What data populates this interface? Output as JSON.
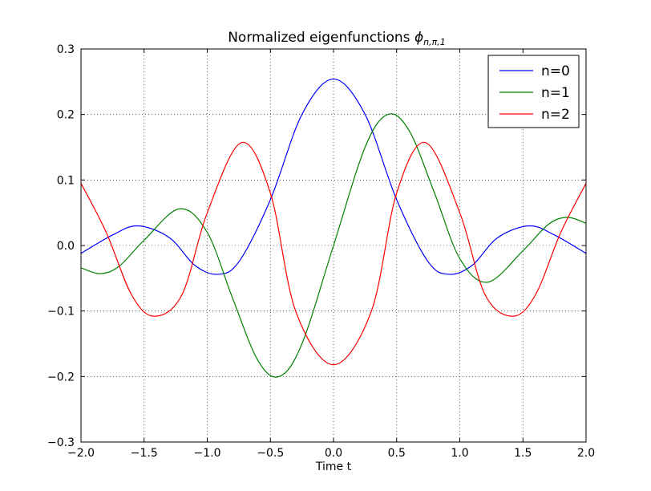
{
  "chart_data": {
    "type": "line",
    "title": "Normalized eigenfunctions",
    "title_math": "ϕ",
    "title_subscript": "n,π,1",
    "xlabel": "Time t",
    "ylabel": "",
    "xlim": [
      -2.0,
      2.0
    ],
    "ylim": [
      -0.3,
      0.3
    ],
    "grid": true,
    "legend_position": "top-right",
    "x_ticks": [
      -2.0,
      -1.5,
      -1.0,
      -0.5,
      0.0,
      0.5,
      1.0,
      1.5,
      2.0
    ],
    "x_tick_labels": [
      "−2.0",
      "−1.5",
      "−1.0",
      "−0.5",
      "0.0",
      "0.5",
      "1.0",
      "1.5",
      "2.0"
    ],
    "y_ticks": [
      -0.3,
      -0.2,
      -0.1,
      0.0,
      0.1,
      0.2,
      0.3
    ],
    "y_tick_labels": [
      "−0.3",
      "−0.2",
      "−0.1",
      "0.0",
      "0.1",
      "0.2",
      "0.3"
    ],
    "series": [
      {
        "name": "n=0",
        "color": "#0000ff",
        "x": [
          -2.0,
          -1.75,
          -1.55,
          -1.3,
          -1.1,
          -0.92,
          -0.75,
          -0.5,
          -0.25,
          0.0,
          0.25,
          0.5,
          0.75,
          0.92,
          1.1,
          1.3,
          1.55,
          1.75,
          2.0
        ],
        "y": [
          -0.012,
          0.016,
          0.03,
          0.012,
          -0.03,
          -0.044,
          -0.025,
          0.07,
          0.2,
          0.254,
          0.2,
          0.07,
          -0.025,
          -0.044,
          -0.03,
          0.012,
          0.03,
          0.016,
          -0.012
        ]
      },
      {
        "name": "n=1",
        "color": "#008000",
        "x": [
          -2.0,
          -1.85,
          -1.7,
          -1.5,
          -1.22,
          -1.0,
          -0.8,
          -0.6,
          -0.43,
          -0.25,
          0.0,
          0.25,
          0.43,
          0.6,
          0.8,
          1.0,
          1.22,
          1.5,
          1.7,
          1.85,
          2.0
        ],
        "y": [
          -0.034,
          -0.043,
          -0.032,
          0.008,
          0.056,
          0.02,
          -0.08,
          -0.175,
          -0.2,
          -0.15,
          0.0,
          0.15,
          0.2,
          0.175,
          0.08,
          -0.02,
          -0.056,
          -0.008,
          0.032,
          0.043,
          0.034
        ]
      },
      {
        "name": "n=2",
        "color": "#ff0000",
        "x": [
          -2.0,
          -1.8,
          -1.6,
          -1.42,
          -1.2,
          -1.0,
          -0.73,
          -0.5,
          -0.3,
          0.0,
          0.3,
          0.5,
          0.73,
          1.0,
          1.2,
          1.42,
          1.6,
          1.8,
          2.0
        ],
        "y": [
          0.095,
          0.02,
          -0.075,
          -0.108,
          -0.075,
          0.05,
          0.157,
          0.08,
          -0.1,
          -0.182,
          -0.1,
          0.08,
          0.157,
          0.05,
          -0.075,
          -0.108,
          -0.075,
          0.02,
          0.095
        ]
      }
    ]
  }
}
